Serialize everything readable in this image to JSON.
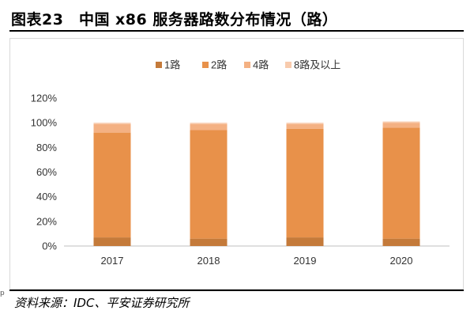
{
  "header": {
    "title": "图表23　中国 x86 服务器路数分布情况（路）"
  },
  "footer": {
    "source": "资料来源：IDC、平安证券研究所",
    "side_mark": "p"
  },
  "chart_data": {
    "type": "bar",
    "stacked": true,
    "categories": [
      "2017",
      "2018",
      "2019",
      "2020"
    ],
    "series": [
      {
        "name": "1路",
        "color": "#c47a3a",
        "values": [
          7,
          6,
          7,
          6
        ]
      },
      {
        "name": "2路",
        "color": "#e8914a",
        "values": [
          85,
          88,
          88,
          90
        ]
      },
      {
        "name": "4路",
        "color": "#f4b183",
        "values": [
          7,
          5,
          4,
          4
        ]
      },
      {
        "name": "8路及以上",
        "color": "#f8cbad",
        "values": [
          1,
          1,
          1,
          1
        ]
      }
    ],
    "yticks": [
      "0%",
      "20%",
      "40%",
      "60%",
      "80%",
      "100%",
      "120%"
    ],
    "ylim": [
      0,
      120
    ],
    "legend_position": "top",
    "grid": false
  }
}
